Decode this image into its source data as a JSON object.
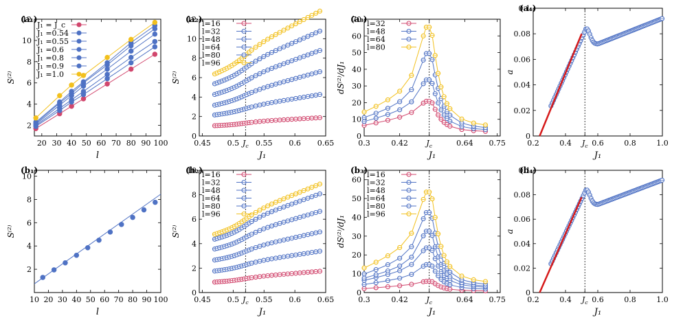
{
  "figure": {
    "panels_meta": "8 panels"
  },
  "colors": {
    "red": "#d1466d",
    "blue": "#4f72c4",
    "yellow": "#f2c01d",
    "line": "#4a4a4a",
    "fit": "#d61a1a"
  },
  "chart_data": [
    {
      "id": "a1",
      "label": "(a₁)",
      "type": "line",
      "xlabel": "l",
      "ylabel": "S⁽²⁾",
      "xlim": [
        15,
        100
      ],
      "ylim": [
        1,
        12
      ],
      "xticks": [
        20,
        30,
        40,
        50,
        60,
        70,
        80,
        90,
        100
      ],
      "yticks": [
        2,
        4,
        6,
        8,
        10,
        12
      ],
      "x": [
        16,
        32,
        40,
        48,
        64,
        80,
        96
      ],
      "series": [
        {
          "name": "J₁ = J_c",
          "color": "red",
          "marker": "filled",
          "values": [
            1.7,
            3.1,
            3.8,
            4.5,
            5.9,
            7.3,
            8.7
          ]
        },
        {
          "name": "J₁ =0.54",
          "color": "blue",
          "marker": "filled",
          "values": [
            1.9,
            3.4,
            4.2,
            4.9,
            6.4,
            7.9,
            9.4
          ]
        },
        {
          "name": "J₁ =0.55",
          "color": "blue",
          "marker": "filled",
          "values": [
            2.0,
            3.6,
            4.4,
            5.2,
            6.8,
            8.4,
            9.9
          ]
        },
        {
          "name": "J₁ =0.6",
          "color": "blue",
          "marker": "filled",
          "values": [
            2.1,
            3.9,
            4.8,
            5.7,
            7.3,
            9.0,
            10.6
          ]
        },
        {
          "name": "J₁ =0.8",
          "color": "blue",
          "marker": "filled",
          "values": [
            2.2,
            4.1,
            5.0,
            6.0,
            7.7,
            9.5,
            11.1
          ]
        },
        {
          "name": "J₁ =0.9",
          "color": "blue",
          "marker": "filled",
          "values": [
            2.3,
            4.2,
            5.2,
            6.1,
            7.9,
            9.8,
            11.4
          ]
        },
        {
          "name": "J₁ =1.0",
          "color": "yellow",
          "marker": "filled",
          "values": [
            2.7,
            4.8,
            5.8,
            6.7,
            8.4,
            10.1,
            11.7
          ]
        }
      ]
    },
    {
      "id": "a2",
      "label": "(a₂)",
      "type": "scatter",
      "xlabel": "J₁",
      "ylabel": "S⁽²⁾",
      "xlim": [
        0.445,
        0.65
      ],
      "ylim": [
        0,
        12
      ],
      "xticks": [
        0.45,
        0.5,
        0.55,
        0.6,
        0.65
      ],
      "xticklabels": [
        "0.45",
        "0.5",
        "J_c",
        "0.55",
        "0.6",
        "0.65"
      ],
      "xticks_full": [
        0.45,
        0.5,
        0.52,
        0.55,
        0.6,
        0.65
      ],
      "yticks": [
        0,
        2,
        4,
        6,
        8,
        10,
        12
      ],
      "vline": 0.52,
      "series": [
        {
          "name": "l=16",
          "color": "red",
          "params": [
            0.47,
            1.05,
            1.3,
            0.45,
            0.3
          ]
        },
        {
          "name": "l=32",
          "color": "blue",
          "params": [
            0.47,
            2.15,
            2.9,
            0.8,
            0.75
          ]
        },
        {
          "name": "l=48",
          "color": "blue",
          "params": [
            0.47,
            3.15,
            4.4,
            1.2,
            1.3
          ]
        },
        {
          "name": "l=64",
          "color": "blue",
          "params": [
            0.47,
            4.25,
            5.9,
            1.55,
            1.7
          ]
        },
        {
          "name": "l=80",
          "color": "blue",
          "params": [
            0.47,
            5.35,
            7.3,
            1.9,
            2.1
          ]
        },
        {
          "name": "l=96",
          "color": "yellow",
          "params": [
            0.47,
            6.35,
            8.7,
            2.2,
            2.5
          ]
        }
      ]
    },
    {
      "id": "a3",
      "label": "(a₃)",
      "type": "line",
      "xlabel": "J₁",
      "ylabel": "dS⁽²⁾/dJ₁",
      "xlim": [
        0.3,
        0.76
      ],
      "ylim": [
        0,
        70
      ],
      "xticks_full": [
        0.3,
        0.42,
        0.52,
        0.64,
        0.75
      ],
      "xticklabels": [
        "0.3",
        "0.42",
        "J_c",
        "0.64",
        "0.75"
      ],
      "yticks": [
        0,
        10,
        20,
        30,
        40,
        50,
        60,
        70
      ],
      "vline": 0.52,
      "series": [
        {
          "name": "l=32",
          "color": "red",
          "peak": 21,
          "base": 6
        },
        {
          "name": "l=48",
          "color": "blue",
          "peak": 34,
          "base": 8
        },
        {
          "name": "l=64",
          "color": "blue",
          "peak": 50,
          "base": 10
        },
        {
          "name": "l=80",
          "color": "yellow",
          "peak": 66,
          "base": 13
        }
      ]
    },
    {
      "id": "a4",
      "label": "(a₄)",
      "type": "scatter",
      "xlabel": "J₁",
      "ylabel": "a",
      "xlim": [
        0.2,
        1.0
      ],
      "ylim": [
        0,
        0.1
      ],
      "xticks_full": [
        0.2,
        0.4,
        0.52,
        0.6,
        0.8,
        1.0
      ],
      "xticklabels": [
        "0.2",
        "0.4",
        "J_c",
        "0.6",
        "0.8",
        "1.0"
      ],
      "yticks": [
        0,
        0.02,
        0.04,
        0.06,
        0.08,
        0.1
      ],
      "yticklabels": [
        "0",
        "0.02",
        "0.04",
        "0.06",
        "0.08",
        "0.1"
      ],
      "vline": 0.52,
      "fit": [
        [
          0.24,
          0.0
        ],
        [
          0.5,
          0.08
        ]
      ]
    },
    {
      "id": "b1",
      "label": "(b₁)",
      "type": "line",
      "xlabel": "l",
      "ylabel": "S⁽²⁾",
      "xlim": [
        10,
        100
      ],
      "ylim": [
        0,
        10.5
      ],
      "xticks": [
        10,
        20,
        30,
        40,
        50,
        60,
        70,
        80,
        90,
        100
      ],
      "yticks": [
        2,
        4,
        6,
        8,
        10
      ],
      "x": [
        16,
        24,
        32,
        40,
        48,
        56,
        64,
        72,
        80,
        88,
        96
      ],
      "series": [
        {
          "name": "",
          "color": "blue",
          "marker": "filled",
          "values": [
            1.3,
            1.95,
            2.55,
            3.2,
            3.85,
            4.5,
            5.2,
            5.85,
            6.45,
            7.1,
            7.75
          ]
        }
      ],
      "fitline": [
        [
          10,
          0.75
        ],
        [
          100,
          8.45
        ]
      ]
    },
    {
      "id": "b2",
      "label": "(b₂)",
      "type": "scatter",
      "xlabel": "J₁",
      "ylabel": "S⁽²⁾",
      "xlim": [
        0.445,
        0.65
      ],
      "ylim": [
        0,
        10
      ],
      "xticks_full": [
        0.45,
        0.5,
        0.52,
        0.55,
        0.6,
        0.65
      ],
      "xticklabels": [
        "0.45",
        "0.5",
        "J_c",
        "0.55",
        "0.6",
        "0.65"
      ],
      "yticks": [
        0,
        2,
        4,
        6,
        8,
        10
      ],
      "vline": 0.52,
      "series": [
        {
          "name": "l=16",
          "color": "red",
          "params": [
            0.47,
            0.85,
            1.15,
            0.4,
            0.3
          ]
        },
        {
          "name": "l=32",
          "color": "blue",
          "params": [
            0.47,
            1.75,
            2.3,
            0.7,
            0.6
          ]
        },
        {
          "name": "l=48",
          "color": "blue",
          "params": [
            0.47,
            2.65,
            3.4,
            1.0,
            1.0
          ]
        },
        {
          "name": "l=64",
          "color": "blue",
          "params": [
            0.47,
            3.55,
            4.55,
            1.35,
            1.35
          ]
        },
        {
          "name": "l=80",
          "color": "blue",
          "params": [
            0.47,
            4.35,
            5.55,
            1.6,
            1.7
          ]
        },
        {
          "name": "l=96",
          "color": "yellow",
          "params": [
            0.47,
            4.75,
            6.1,
            1.7,
            1.9
          ]
        }
      ]
    },
    {
      "id": "b3",
      "label": "(b₃)",
      "type": "line",
      "xlabel": "J₁",
      "ylabel": "dS⁽²⁾/dJ₁",
      "xlim": [
        0.3,
        0.76
      ],
      "ylim": [
        0,
        65
      ],
      "xticks_full": [
        0.3,
        0.42,
        0.52,
        0.64,
        0.75
      ],
      "xticklabels": [
        "0.3",
        "0.42",
        "J_c",
        "0.64",
        "0.75"
      ],
      "yticks": [
        0,
        10,
        20,
        30,
        40,
        50,
        60
      ],
      "vline": 0.52,
      "series": [
        {
          "name": "l=16",
          "color": "red",
          "peak": 6,
          "base": 2
        },
        {
          "name": "l=32",
          "color": "blue",
          "peak": 15,
          "base": 4
        },
        {
          "name": "l=48",
          "color": "blue",
          "peak": 24,
          "base": 6
        },
        {
          "name": "l=64",
          "color": "blue",
          "peak": 33,
          "base": 7
        },
        {
          "name": "l=80",
          "color": "blue",
          "peak": 43,
          "base": 9
        },
        {
          "name": "l=96",
          "color": "yellow",
          "peak": 54,
          "base": 12
        }
      ]
    },
    {
      "id": "b4",
      "label": "(b₄)",
      "type": "scatter",
      "xlabel": "J₁",
      "ylabel": "a",
      "xlim": [
        0.2,
        1.0
      ],
      "ylim": [
        0,
        0.1
      ],
      "xticks_full": [
        0.2,
        0.4,
        0.52,
        0.6,
        0.8,
        1.0
      ],
      "xticklabels": [
        "0.2",
        "0.4",
        "J_c",
        "0.6",
        "0.8",
        "1.0"
      ],
      "yticks": [
        0,
        0.02,
        0.04,
        0.06,
        0.08,
        0.1
      ],
      "yticklabels": [
        "0",
        "0.02",
        "0.04",
        "0.06",
        "0.08",
        "0.1"
      ],
      "vline": 0.52,
      "fit": [
        [
          0.24,
          0.0
        ],
        [
          0.5,
          0.078
        ]
      ]
    }
  ]
}
